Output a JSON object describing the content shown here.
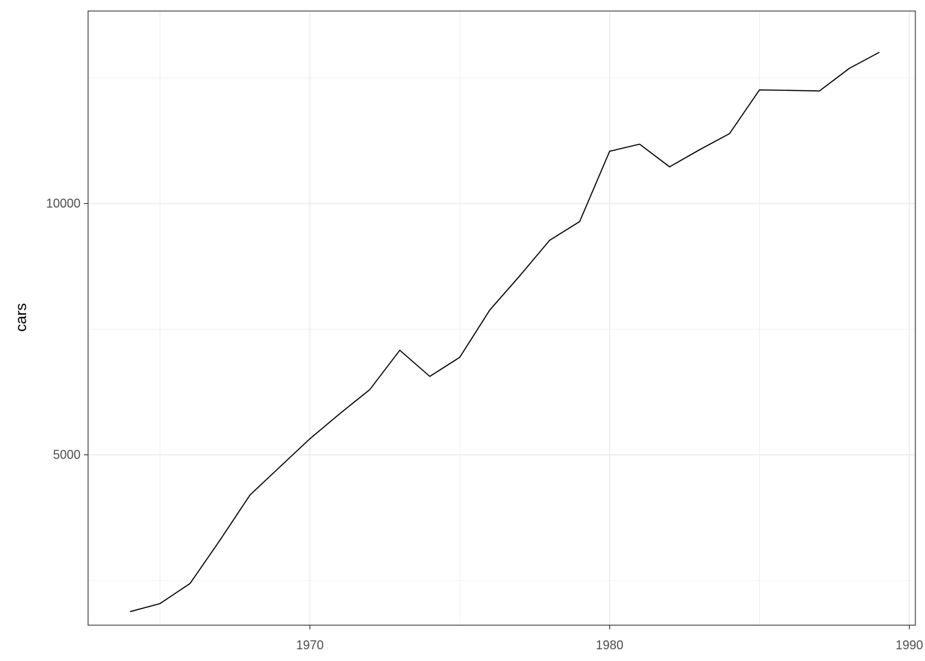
{
  "chart_data": {
    "type": "line",
    "title": "",
    "xlabel": "",
    "ylabel": "cars",
    "xlim": [
      1962.6,
      1990.2
    ],
    "ylim": [
      1610,
      13830
    ],
    "x_ticks": [
      1970,
      1980,
      1990
    ],
    "x_tick_labels": [
      "1970",
      "1980",
      "1990"
    ],
    "x_minor_ticks": [
      1965,
      1975,
      1985
    ],
    "y_ticks": [
      5000,
      10000
    ],
    "y_tick_labels": [
      "5000",
      "10000"
    ],
    "y_minor_ticks": [
      2500,
      7500,
      12500
    ],
    "grid": true,
    "colors": {
      "line": "#000000",
      "grid": "#ebebeb",
      "panel_border": "#333333"
    },
    "series": [
      {
        "x": [
          1964,
          1965,
          1966,
          1967,
          1968,
          1969,
          1970,
          1971,
          1972,
          1973,
          1974,
          1975,
          1976,
          1977,
          1978,
          1979,
          1980,
          1981,
          1982,
          1983,
          1984,
          1985,
          1986,
          1987,
          1988,
          1989
        ],
        "values": [
          1880,
          2040,
          2440,
          3300,
          4200,
          4760,
          5320,
          5820,
          6300,
          7080,
          6560,
          6940,
          7880,
          8560,
          9270,
          9640,
          11040,
          11180,
          10730,
          11070,
          11390,
          12260,
          12250,
          12240,
          12690,
          13010
        ]
      }
    ]
  }
}
